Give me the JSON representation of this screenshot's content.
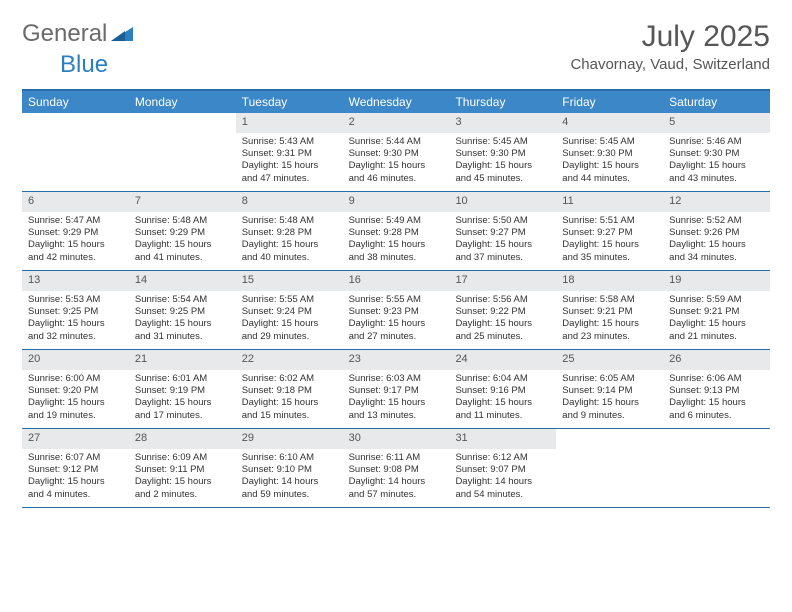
{
  "logo": {
    "text1": "General",
    "text2": "Blue"
  },
  "title": "July 2025",
  "location": "Chavornay, Vaud, Switzerland",
  "weekday_header": {
    "bg": "#3b87c8",
    "fg": "#ffffff",
    "border": "#2a6ca8"
  },
  "daynum_bg": "#e8e9ea",
  "weekdays": [
    "Sunday",
    "Monday",
    "Tuesday",
    "Wednesday",
    "Thursday",
    "Friday",
    "Saturday"
  ],
  "weeks": [
    [
      null,
      null,
      {
        "n": "1",
        "sunrise": "5:43 AM",
        "sunset": "9:31 PM",
        "daylight": "15 hours and 47 minutes."
      },
      {
        "n": "2",
        "sunrise": "5:44 AM",
        "sunset": "9:30 PM",
        "daylight": "15 hours and 46 minutes."
      },
      {
        "n": "3",
        "sunrise": "5:45 AM",
        "sunset": "9:30 PM",
        "daylight": "15 hours and 45 minutes."
      },
      {
        "n": "4",
        "sunrise": "5:45 AM",
        "sunset": "9:30 PM",
        "daylight": "15 hours and 44 minutes."
      },
      {
        "n": "5",
        "sunrise": "5:46 AM",
        "sunset": "9:30 PM",
        "daylight": "15 hours and 43 minutes."
      }
    ],
    [
      {
        "n": "6",
        "sunrise": "5:47 AM",
        "sunset": "9:29 PM",
        "daylight": "15 hours and 42 minutes."
      },
      {
        "n": "7",
        "sunrise": "5:48 AM",
        "sunset": "9:29 PM",
        "daylight": "15 hours and 41 minutes."
      },
      {
        "n": "8",
        "sunrise": "5:48 AM",
        "sunset": "9:28 PM",
        "daylight": "15 hours and 40 minutes."
      },
      {
        "n": "9",
        "sunrise": "5:49 AM",
        "sunset": "9:28 PM",
        "daylight": "15 hours and 38 minutes."
      },
      {
        "n": "10",
        "sunrise": "5:50 AM",
        "sunset": "9:27 PM",
        "daylight": "15 hours and 37 minutes."
      },
      {
        "n": "11",
        "sunrise": "5:51 AM",
        "sunset": "9:27 PM",
        "daylight": "15 hours and 35 minutes."
      },
      {
        "n": "12",
        "sunrise": "5:52 AM",
        "sunset": "9:26 PM",
        "daylight": "15 hours and 34 minutes."
      }
    ],
    [
      {
        "n": "13",
        "sunrise": "5:53 AM",
        "sunset": "9:25 PM",
        "daylight": "15 hours and 32 minutes."
      },
      {
        "n": "14",
        "sunrise": "5:54 AM",
        "sunset": "9:25 PM",
        "daylight": "15 hours and 31 minutes."
      },
      {
        "n": "15",
        "sunrise": "5:55 AM",
        "sunset": "9:24 PM",
        "daylight": "15 hours and 29 minutes."
      },
      {
        "n": "16",
        "sunrise": "5:55 AM",
        "sunset": "9:23 PM",
        "daylight": "15 hours and 27 minutes."
      },
      {
        "n": "17",
        "sunrise": "5:56 AM",
        "sunset": "9:22 PM",
        "daylight": "15 hours and 25 minutes."
      },
      {
        "n": "18",
        "sunrise": "5:58 AM",
        "sunset": "9:21 PM",
        "daylight": "15 hours and 23 minutes."
      },
      {
        "n": "19",
        "sunrise": "5:59 AM",
        "sunset": "9:21 PM",
        "daylight": "15 hours and 21 minutes."
      }
    ],
    [
      {
        "n": "20",
        "sunrise": "6:00 AM",
        "sunset": "9:20 PM",
        "daylight": "15 hours and 19 minutes."
      },
      {
        "n": "21",
        "sunrise": "6:01 AM",
        "sunset": "9:19 PM",
        "daylight": "15 hours and 17 minutes."
      },
      {
        "n": "22",
        "sunrise": "6:02 AM",
        "sunset": "9:18 PM",
        "daylight": "15 hours and 15 minutes."
      },
      {
        "n": "23",
        "sunrise": "6:03 AM",
        "sunset": "9:17 PM",
        "daylight": "15 hours and 13 minutes."
      },
      {
        "n": "24",
        "sunrise": "6:04 AM",
        "sunset": "9:16 PM",
        "daylight": "15 hours and 11 minutes."
      },
      {
        "n": "25",
        "sunrise": "6:05 AM",
        "sunset": "9:14 PM",
        "daylight": "15 hours and 9 minutes."
      },
      {
        "n": "26",
        "sunrise": "6:06 AM",
        "sunset": "9:13 PM",
        "daylight": "15 hours and 6 minutes."
      }
    ],
    [
      {
        "n": "27",
        "sunrise": "6:07 AM",
        "sunset": "9:12 PM",
        "daylight": "15 hours and 4 minutes."
      },
      {
        "n": "28",
        "sunrise": "6:09 AM",
        "sunset": "9:11 PM",
        "daylight": "15 hours and 2 minutes."
      },
      {
        "n": "29",
        "sunrise": "6:10 AM",
        "sunset": "9:10 PM",
        "daylight": "14 hours and 59 minutes."
      },
      {
        "n": "30",
        "sunrise": "6:11 AM",
        "sunset": "9:08 PM",
        "daylight": "14 hours and 57 minutes."
      },
      {
        "n": "31",
        "sunrise": "6:12 AM",
        "sunset": "9:07 PM",
        "daylight": "14 hours and 54 minutes."
      },
      null,
      null
    ]
  ],
  "labels": {
    "sunrise": "Sunrise: ",
    "sunset": "Sunset: ",
    "daylight": "Daylight: "
  }
}
